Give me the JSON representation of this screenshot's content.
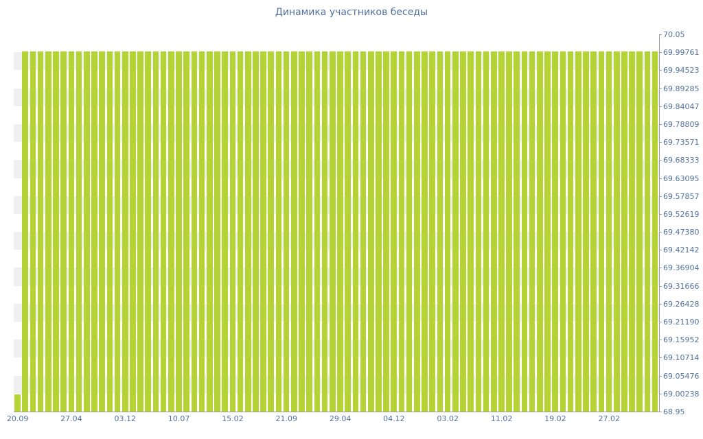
{
  "chart_data": {
    "type": "bar",
    "title": "Динамика участников беседы",
    "xlabel": "",
    "ylabel": "",
    "legend": "none",
    "grid": "alternating-horizontal-bands",
    "y_min": 68.95,
    "y_max": 70.05,
    "y_tick_labels": [
      "70.05",
      "69.99761",
      "69.94523",
      "69.89285",
      "69.84047",
      "69.78809",
      "69.73571",
      "69.68333",
      "69.63095",
      "69.57857",
      "69.52619",
      "69.47380",
      "69.42142",
      "69.36904",
      "69.31666",
      "69.26428",
      "69.21190",
      "69.15952",
      "69.10714",
      "69.05476",
      "69.00238",
      "68.95"
    ],
    "x_tick_labels": [
      "20.09",
      "27.04",
      "03.12",
      "10.07",
      "15.02",
      "21.09",
      "29.04",
      "04.12",
      "03.02",
      "11.02",
      "19.02",
      "27.02"
    ],
    "x_label_bar_indices": [
      0,
      7,
      14,
      21,
      28,
      35,
      42,
      49,
      56,
      63,
      70,
      77
    ],
    "values": [
      69,
      70,
      70,
      70,
      70,
      70,
      70,
      70,
      70,
      70,
      70,
      70,
      70,
      70,
      70,
      70,
      70,
      70,
      70,
      70,
      70,
      70,
      70,
      70,
      70,
      70,
      70,
      70,
      70,
      70,
      70,
      70,
      70,
      70,
      70,
      70,
      70,
      70,
      70,
      70,
      70,
      70,
      70,
      70,
      70,
      70,
      70,
      70,
      70,
      70,
      70,
      70,
      70,
      70,
      70,
      70,
      70,
      70,
      70,
      70,
      70,
      70,
      70,
      70,
      70,
      70,
      70,
      70,
      70,
      70,
      70,
      70,
      70,
      70,
      70,
      70,
      70,
      70,
      70,
      70,
      70,
      70,
      70,
      70
    ],
    "bar_color": "#b5d334",
    "band_color": "#f0f0f0",
    "axis_color": "#9b9b9b",
    "title_color": "#50719e",
    "label_color": "#50719e"
  }
}
